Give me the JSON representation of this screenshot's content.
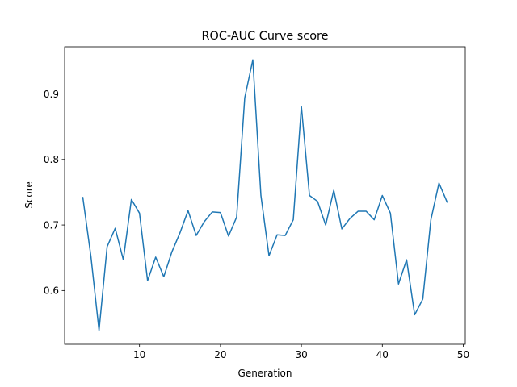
{
  "chart_data": {
    "type": "line",
    "title": "ROC-AUC Curve score",
    "xlabel": "Generation",
    "ylabel": "Score",
    "xlim": [
      0.75,
      50.25
    ],
    "ylim": [
      0.518,
      0.972
    ],
    "xticks": [
      10,
      20,
      30,
      40,
      50
    ],
    "yticks": [
      0.6,
      0.7,
      0.8,
      0.9
    ],
    "xtick_labels": [
      "10",
      "20",
      "30",
      "40",
      "50"
    ],
    "ytick_labels": [
      "0.6",
      "0.7",
      "0.8",
      "0.9"
    ],
    "grid": false,
    "line_color": "#1f77b4",
    "series": [
      {
        "x": [
          3,
          4,
          5,
          6,
          7,
          8,
          9,
          10,
          11,
          12,
          13,
          14,
          15,
          16,
          17,
          18,
          19,
          20,
          21,
          22,
          23,
          24,
          25,
          26,
          27,
          28,
          29,
          30,
          31,
          32,
          33,
          34,
          35,
          36,
          37,
          38,
          39,
          40,
          41,
          42,
          43,
          44,
          45,
          46,
          47,
          48
        ],
        "values": [
          0.742,
          0.652,
          0.539,
          0.667,
          0.695,
          0.647,
          0.739,
          0.718,
          0.615,
          0.651,
          0.621,
          0.659,
          0.688,
          0.722,
          0.684,
          0.705,
          0.72,
          0.719,
          0.683,
          0.712,
          0.894,
          0.952,
          0.745,
          0.653,
          0.685,
          0.684,
          0.708,
          0.881,
          0.745,
          0.736,
          0.7,
          0.753,
          0.694,
          0.71,
          0.721,
          0.721,
          0.708,
          0.745,
          0.718,
          0.61,
          0.647,
          0.563,
          0.587,
          0.708,
          0.764,
          0.735
        ]
      }
    ]
  }
}
